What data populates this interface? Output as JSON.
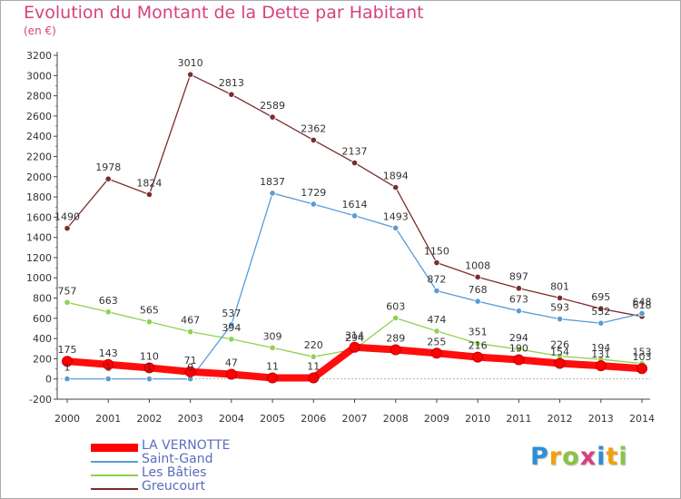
{
  "title": "Evolution du Montant de la Dette par Habitant",
  "subtitle": "(en €)",
  "logo_text": "Proxiti",
  "chart_data": {
    "type": "line",
    "title": "Evolution du Montant de la Dette par Habitant",
    "subtitle": "(en €)",
    "x": [
      2000,
      2001,
      2002,
      2003,
      2004,
      2005,
      2006,
      2007,
      2008,
      2009,
      2010,
      2011,
      2012,
      2013,
      2014
    ],
    "ylim": [
      -200,
      3200
    ],
    "y_ticks": [
      -200,
      0,
      200,
      400,
      600,
      800,
      1000,
      1200,
      1400,
      1600,
      1800,
      2000,
      2200,
      2400,
      2600,
      2800,
      3000,
      3200
    ],
    "grid": false,
    "legend_position": "bottom-left",
    "series": [
      {
        "name": "LA VERNOTTE",
        "color": "#ff0000",
        "values": [
          175,
          143,
          110,
          71,
          47,
          11,
          11,
          314,
          289,
          255,
          216,
          190,
          154,
          131,
          103
        ]
      },
      {
        "name": "Saint-Gand",
        "color": "#5b9bd5",
        "values": [
          1,
          1,
          1,
          0,
          537,
          1837,
          1729,
          1614,
          1493,
          872,
          768,
          673,
          593,
          552,
          648
        ]
      },
      {
        "name": "Les Bâties",
        "color": "#8fd14f",
        "values": [
          757,
          663,
          565,
          467,
          394,
          309,
          220,
          294,
          603,
          474,
          351,
          294,
          226,
          194,
          153
        ]
      },
      {
        "name": "Greucourt",
        "color": "#7b2c2c",
        "values": [
          1490,
          1978,
          1824,
          3010,
          2813,
          2589,
          2362,
          2137,
          1894,
          1150,
          1008,
          897,
          801,
          695,
          618
        ]
      }
    ]
  }
}
